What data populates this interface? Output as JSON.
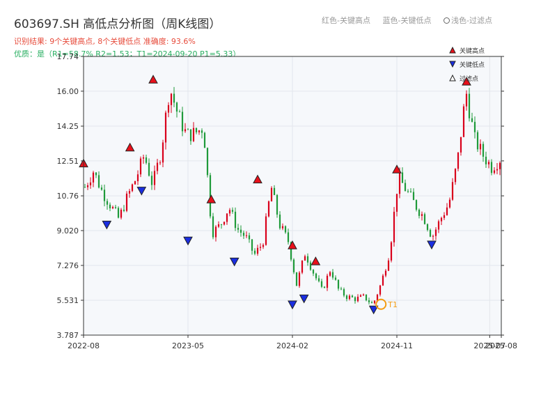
{
  "header": {
    "title": "603697.SH 高低点分析图（周K线图）",
    "summary": "识别结果: 9个关键高点, 8个关键低点   准确度: 93.6%",
    "quality": "优质：是（R1=58.7%  R2=1.53；T1=2024-09-20 P1=5.33）"
  },
  "top_legend": {
    "red": "红色-关键高点",
    "blue": "蓝色-关键低点",
    "light": "浅色-过滤点"
  },
  "colors": {
    "up": "#d9001b",
    "down": "#1f9a3a",
    "key_high": "#e8101a",
    "key_low": "#1a2ee0",
    "filtered": "#ffffff",
    "t1": "#f39c12"
  },
  "chart_data": {
    "type": "candlestick",
    "legend": [
      "关键高点",
      "关键低点",
      "过滤点"
    ],
    "x_ticks": [
      "2022-08",
      "2023-05",
      "2024-02",
      "2024-11",
      "2025-07",
      "2025-08"
    ],
    "y_ticks": [
      "3.787",
      "5.531",
      "7.276",
      "9.020",
      "10.76",
      "12.51",
      "14.25",
      "16.00",
      "17.74"
    ],
    "ylim": [
      3.787,
      17.74
    ],
    "x_range": [
      "2022-08",
      "2025-08"
    ],
    "grid": true,
    "legend_placement": "top-right",
    "t1_label": "T1",
    "t1": {
      "date": "2024-09-20",
      "price": 5.33
    },
    "key_highs": [
      {
        "date": "2022-08",
        "price": 12.1
      },
      {
        "date": "2022-12",
        "price": 12.9
      },
      {
        "date": "2023-02",
        "price": 16.3
      },
      {
        "date": "2023-07",
        "price": 10.3
      },
      {
        "date": "2023-11",
        "price": 11.3
      },
      {
        "date": "2024-02",
        "price": 8.0
      },
      {
        "date": "2024-04",
        "price": 7.2
      },
      {
        "date": "2024-11",
        "price": 11.8
      },
      {
        "date": "2025-05",
        "price": 16.2
      }
    ],
    "key_lows": [
      {
        "date": "2022-10",
        "price": 9.6
      },
      {
        "date": "2023-01",
        "price": 11.3
      },
      {
        "date": "2023-05",
        "price": 8.8
      },
      {
        "date": "2023-09",
        "price": 7.75
      },
      {
        "date": "2024-02",
        "price": 5.6
      },
      {
        "date": "2024-03",
        "price": 5.9
      },
      {
        "date": "2024-09",
        "price": 5.35
      },
      {
        "date": "2025-02",
        "price": 8.6
      }
    ],
    "price_path": [
      [
        "2022-08",
        11.2
      ],
      [
        "2022-08",
        12.0
      ],
      [
        "2022-09",
        11.0
      ],
      [
        "2022-09",
        10.3
      ],
      [
        "2022-10",
        9.6
      ],
      [
        "2022-10",
        10.7
      ],
      [
        "2022-11",
        11.6
      ],
      [
        "2022-12",
        12.8
      ],
      [
        "2023-01",
        11.3
      ],
      [
        "2023-01",
        13.0
      ],
      [
        "2023-02",
        16.2
      ],
      [
        "2023-02",
        14.8
      ],
      [
        "2023-03",
        13.8
      ],
      [
        "2023-04",
        13.9
      ],
      [
        "2023-04",
        14.2
      ],
      [
        "2023-05",
        8.9
      ],
      [
        "2023-06",
        9.3
      ],
      [
        "2023-07",
        10.2
      ],
      [
        "2023-07",
        9.1
      ],
      [
        "2023-08",
        8.7
      ],
      [
        "2023-09",
        7.8
      ],
      [
        "2023-10",
        8.4
      ],
      [
        "2023-11",
        11.2
      ],
      [
        "2023-11",
        9.3
      ],
      [
        "2023-12",
        8.5
      ],
      [
        "2024-01",
        6.3
      ],
      [
        "2024-02",
        7.9
      ],
      [
        "2024-02",
        6.9
      ],
      [
        "2024-03",
        6.0
      ],
      [
        "2024-04",
        7.1
      ],
      [
        "2024-05",
        6.0
      ],
      [
        "2024-06",
        5.7
      ],
      [
        "2024-07",
        5.6
      ],
      [
        "2024-08",
        5.7
      ],
      [
        "2024-09",
        5.3
      ],
      [
        "2024-10",
        6.4
      ],
      [
        "2024-10",
        8.0
      ],
      [
        "2024-11",
        11.7
      ],
      [
        "2024-11",
        11.0
      ],
      [
        "2024-12",
        10.3
      ],
      [
        "2025-01",
        9.7
      ],
      [
        "2025-02",
        8.7
      ],
      [
        "2025-02",
        9.6
      ],
      [
        "2025-03",
        10.4
      ],
      [
        "2025-04",
        12.5
      ],
      [
        "2025-05",
        16.0
      ],
      [
        "2025-05",
        13.6
      ],
      [
        "2025-06",
        12.8
      ],
      [
        "2025-07",
        12.2
      ],
      [
        "2025-08",
        12.6
      ]
    ]
  }
}
